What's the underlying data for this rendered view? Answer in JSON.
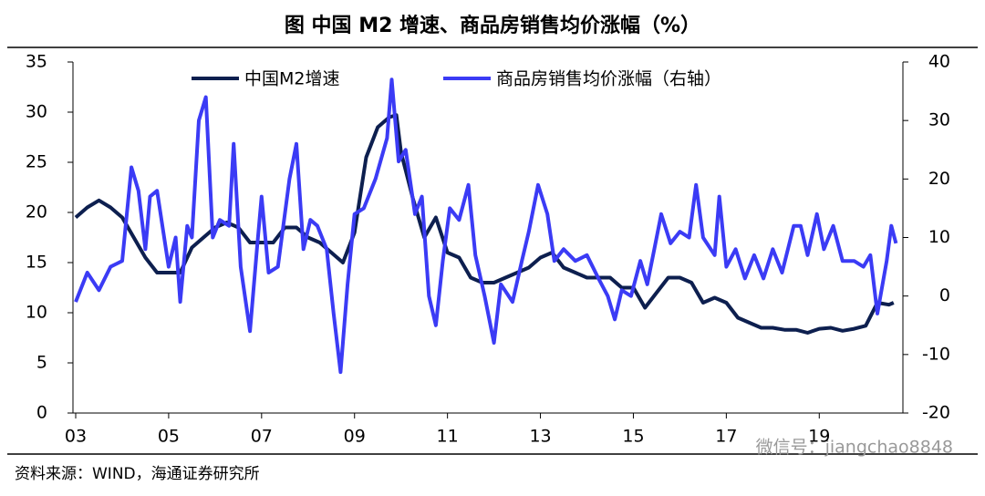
{
  "chart_data": {
    "type": "line",
    "title": "图 中国 M2 增速、商品房销售均价涨幅（%）",
    "source": "资料来源：WIND，海通证券研究所",
    "watermark": "微信号：jiangchao8848",
    "xlim": [
      2003,
      2020.8
    ],
    "xticks": [
      {
        "value": 2003,
        "label": "03"
      },
      {
        "value": 2005,
        "label": "05"
      },
      {
        "value": 2007,
        "label": "07"
      },
      {
        "value": 2009,
        "label": "09"
      },
      {
        "value": 2011,
        "label": "11"
      },
      {
        "value": 2013,
        "label": "13"
      },
      {
        "value": 2015,
        "label": "15"
      },
      {
        "value": 2017,
        "label": "17"
      },
      {
        "value": 2019,
        "label": "19"
      }
    ],
    "ylim": [
      0,
      35
    ],
    "yticks": [
      0,
      5,
      10,
      15,
      20,
      25,
      30,
      35
    ],
    "y2lim": [
      -20,
      40
    ],
    "y2ticks": [
      -20,
      -10,
      0,
      10,
      20,
      30,
      40
    ],
    "legend": "top",
    "series": [
      {
        "name": "中国M2增速",
        "color": "#0d1f4f",
        "axis": "y",
        "x": [
          2003.0,
          2003.25,
          2003.5,
          2003.75,
          2004.0,
          2004.25,
          2004.5,
          2004.75,
          2005.0,
          2005.25,
          2005.5,
          2005.75,
          2006.0,
          2006.25,
          2006.5,
          2006.75,
          2007.0,
          2007.25,
          2007.5,
          2007.75,
          2008.0,
          2008.25,
          2008.5,
          2008.75,
          2009.0,
          2009.25,
          2009.5,
          2009.75,
          2009.9,
          2010.0,
          2010.25,
          2010.5,
          2010.75,
          2011.0,
          2011.25,
          2011.5,
          2011.75,
          2012.0,
          2012.25,
          2012.5,
          2012.75,
          2013.0,
          2013.25,
          2013.5,
          2013.75,
          2014.0,
          2014.25,
          2014.5,
          2014.75,
          2015.0,
          2015.25,
          2015.5,
          2015.75,
          2016.0,
          2016.25,
          2016.5,
          2016.75,
          2017.0,
          2017.25,
          2017.5,
          2017.75,
          2018.0,
          2018.25,
          2018.5,
          2018.75,
          2019.0,
          2019.25,
          2019.5,
          2019.75,
          2020.0,
          2020.25,
          2020.5,
          2020.6
        ],
        "values": [
          19.5,
          20.5,
          21.2,
          20.5,
          19.5,
          17.5,
          15.5,
          14,
          14,
          14,
          16.5,
          17.5,
          18.5,
          19,
          18.5,
          17,
          17,
          17,
          18.5,
          18.5,
          17.5,
          17,
          16,
          15,
          18,
          25.5,
          28.5,
          29.5,
          29.7,
          26,
          21.5,
          17.5,
          19.5,
          16,
          15.5,
          13.5,
          13,
          13,
          13.5,
          14,
          14.5,
          15.5,
          16,
          14.5,
          14,
          13.5,
          13.5,
          13.5,
          12.5,
          12.5,
          10.5,
          12,
          13.5,
          13.5,
          13,
          11,
          11.5,
          11,
          9.5,
          9,
          8.5,
          8.5,
          8.3,
          8.3,
          8,
          8.4,
          8.5,
          8.2,
          8.4,
          8.7,
          11,
          10.8,
          11
        ]
      },
      {
        "name": "商品房销售均价涨幅（右轴）",
        "color": "#3b3bf5",
        "axis": "y2",
        "x": [
          2003.0,
          2003.25,
          2003.5,
          2003.75,
          2004.0,
          2004.2,
          2004.35,
          2004.5,
          2004.6,
          2004.75,
          2005.0,
          2005.15,
          2005.25,
          2005.4,
          2005.5,
          2005.65,
          2005.8,
          2005.95,
          2006.1,
          2006.3,
          2006.4,
          2006.55,
          2006.75,
          2006.9,
          2007.0,
          2007.15,
          2007.35,
          2007.6,
          2007.75,
          2007.9,
          2008.05,
          2008.2,
          2008.4,
          2008.55,
          2008.7,
          2008.85,
          2009.0,
          2009.2,
          2009.45,
          2009.7,
          2009.8,
          2009.95,
          2010.1,
          2010.3,
          2010.45,
          2010.6,
          2010.75,
          2010.9,
          2011.05,
          2011.25,
          2011.45,
          2011.6,
          2011.8,
          2012.0,
          2012.15,
          2012.4,
          2012.6,
          2012.75,
          2012.95,
          2013.15,
          2013.3,
          2013.5,
          2013.75,
          2014.0,
          2014.25,
          2014.45,
          2014.6,
          2014.75,
          2014.95,
          2015.15,
          2015.3,
          2015.45,
          2015.6,
          2015.8,
          2016.0,
          2016.2,
          2016.35,
          2016.5,
          2016.75,
          2016.85,
          2017.0,
          2017.2,
          2017.4,
          2017.6,
          2017.8,
          2018.0,
          2018.2,
          2018.45,
          2018.6,
          2018.75,
          2018.95,
          2019.1,
          2019.3,
          2019.5,
          2019.75,
          2019.95,
          2020.1,
          2020.25,
          2020.45,
          2020.55,
          2020.65
        ],
        "values": [
          -1,
          4,
          1,
          5,
          6,
          22,
          18,
          8,
          17,
          18,
          5,
          10,
          -1,
          12,
          10,
          30,
          34,
          10,
          13,
          12,
          26,
          5,
          -6,
          8,
          17,
          4,
          5,
          20,
          26,
          8,
          13,
          12,
          8,
          -3,
          -13,
          2,
          14,
          15,
          20,
          27,
          37,
          23,
          25,
          14,
          17,
          0,
          -5,
          6,
          15,
          13,
          19,
          7,
          0,
          -8,
          2,
          -1,
          6,
          11,
          19,
          14,
          6,
          8,
          6,
          7,
          3,
          0,
          -4,
          1,
          0,
          6,
          2,
          8,
          14,
          9,
          11,
          10,
          19,
          10,
          7,
          17,
          5,
          8,
          3,
          7,
          3,
          8,
          4,
          12,
          12,
          7,
          14,
          8,
          12,
          6,
          6,
          5,
          7,
          -3,
          6,
          12,
          9
        ]
      }
    ]
  }
}
